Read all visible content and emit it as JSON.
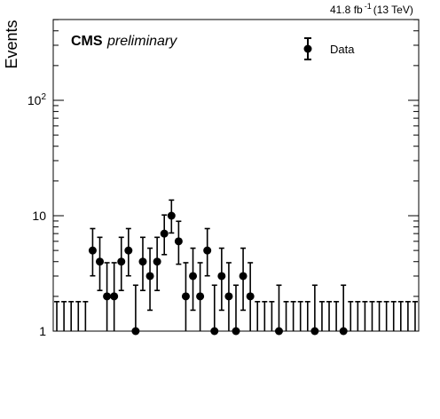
{
  "header": {
    "lumi_value": "41.8 fb",
    "lumi_exponent": "-1",
    "energy": "(13 TeV)"
  },
  "watermark": {
    "experiment": "CMS",
    "status": "preliminary"
  },
  "legend": {
    "entry": "Data",
    "marker": "filled-circle-with-error-bar",
    "placement": "top-right"
  },
  "chart_data": {
    "type": "scatter",
    "ylabel": "Events",
    "xlabel": "",
    "yscale": "log",
    "ylim": [
      1,
      500
    ],
    "xlim": [
      0,
      51
    ],
    "y_tick_labels": [
      "1",
      "10",
      "10^2"
    ],
    "grid": false,
    "series": [
      {
        "name": "Data",
        "color": "#000000",
        "x": [
          0.5,
          1.5,
          2.5,
          3.5,
          4.5,
          5.5,
          6.5,
          7.5,
          8.5,
          9.5,
          10.5,
          11.5,
          12.5,
          13.5,
          14.5,
          15.5,
          16.5,
          17.5,
          18.5,
          19.5,
          20.5,
          21.5,
          22.5,
          23.5,
          24.5,
          25.5,
          26.5,
          27.5,
          28.5,
          29.5,
          30.5,
          31.5,
          32.5,
          33.5,
          34.5,
          35.5,
          36.5,
          37.5,
          38.5,
          39.5,
          40.5,
          41.5,
          42.5,
          43.5,
          44.5,
          45.5,
          46.5,
          47.5,
          48.5,
          49.5,
          50.5
        ],
        "values": [
          0,
          0,
          0,
          0,
          0,
          5,
          4,
          2,
          2,
          4,
          5,
          1,
          4,
          3,
          4,
          7,
          10,
          6,
          2,
          3,
          2,
          5,
          1,
          3,
          2,
          1,
          3,
          2,
          0,
          0,
          0,
          1,
          0,
          0,
          0,
          0,
          1,
          0,
          0,
          0,
          1,
          0,
          0,
          0,
          0,
          0,
          0,
          0,
          0,
          0,
          0
        ]
      }
    ]
  }
}
